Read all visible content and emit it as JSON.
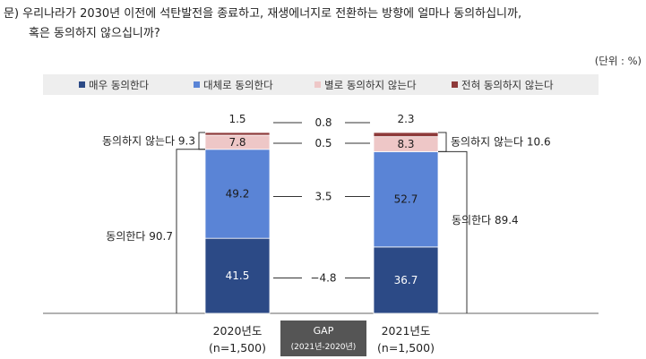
{
  "question": {
    "line1": "문) 우리나라가 2030년 이전에 석탄발전을 종료하고, 재생에너지로 전환하는 방향에 얼마나 동의하십니까,",
    "line2": "혹은 동의하지 않으십니까?"
  },
  "unit": "(단위 : %)",
  "gap_box": {
    "title": "GAP",
    "subtitle": "(2021년-2020년)"
  },
  "chart_data": {
    "type": "bar",
    "stacked": true,
    "categories": [
      "2020년도",
      "2021년도"
    ],
    "category_notes": [
      "(n=1,500)",
      "(n=1,500)"
    ],
    "series": [
      {
        "name": "매우 동의한다",
        "values": [
          41.5,
          36.7
        ],
        "color": "#2c4a86",
        "text_color": "#ffffff"
      },
      {
        "name": "대체로 동의한다",
        "values": [
          49.2,
          52.7
        ],
        "color": "#5a84d6",
        "text_color": "#1a1a1a"
      },
      {
        "name": "별로 동의하지 않는다",
        "values": [
          7.8,
          8.3
        ],
        "color": "#eec7c7",
        "text_color": "#1a1a1a"
      },
      {
        "name": "전혀 동의하지 않는다",
        "values": [
          1.5,
          2.3
        ],
        "color": "#8e3a3a",
        "text_color": "#1a1a1a"
      }
    ],
    "gaps": [
      "-4.8",
      "3.5",
      "0.5",
      "0.8"
    ],
    "summaries": {
      "agree": {
        "label": "동의한다",
        "values": [
          "90.7",
          "89.4"
        ]
      },
      "disagree": {
        "label": "동의하지 않는다",
        "values": [
          "9.3",
          "10.6"
        ]
      }
    },
    "ylim": [
      0,
      100
    ],
    "legend_position": "top"
  }
}
